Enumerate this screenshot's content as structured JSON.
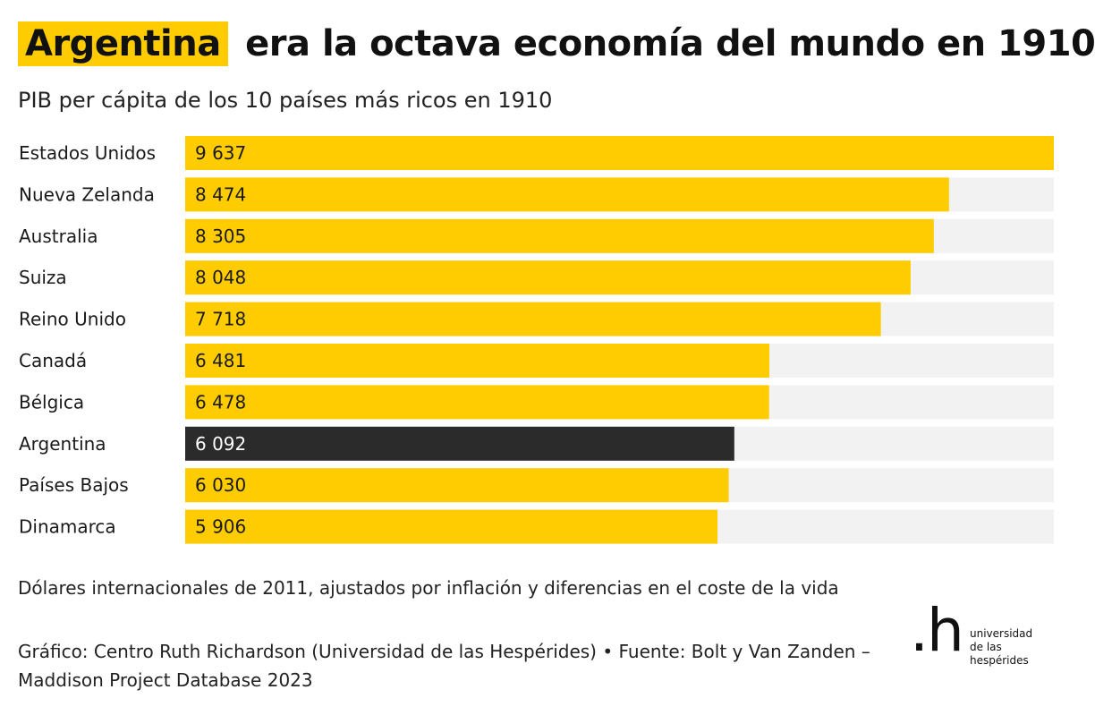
{
  "header": {
    "title_highlight": "Argentina",
    "title_rest": "era la octava economía del mundo en 1910"
  },
  "chart_data": {
    "type": "bar",
    "orientation": "horizontal",
    "title": "Argentina era la octava economía del mundo en 1910",
    "subtitle": "PIB per cápita de los 10 países más ricos en 1910",
    "categories": [
      "Estados Unidos",
      "Nueva Zelanda",
      "Australia",
      "Suiza",
      "Reino Unido",
      "Canadá",
      "Bélgica",
      "Argentina",
      "Países Bajos",
      "Dinamarca"
    ],
    "values": [
      9637,
      8474,
      8305,
      8048,
      7718,
      6481,
      6478,
      6092,
      6030,
      5906
    ],
    "value_labels": [
      "9 637",
      "8 474",
      "8 305",
      "8 048",
      "7 718",
      "6 481",
      "6 478",
      "6 092",
      "6 030",
      "5 906"
    ],
    "highlight": "Argentina",
    "xlim": [
      0,
      9637
    ],
    "colors": {
      "bar": "#fecc00",
      "highlight_bar": "#2b2b2b",
      "track": "#f2f2f2",
      "label_on_bar": "#1a1a1a",
      "label_on_highlight": "#ffffff"
    }
  },
  "footer": {
    "note": "Dólares internacionales de 2011, ajustados por inflación y diferencias en el coste de la vida",
    "credit": "Gráfico: Centro Ruth Richardson (Universidad de las Hespérides) • Fuente: Bolt y Van Zanden – Maddison Project Database 2023"
  },
  "logo": {
    "mark": ".h",
    "line1": "universidad",
    "line2": "de las",
    "line3": "hespérides"
  }
}
